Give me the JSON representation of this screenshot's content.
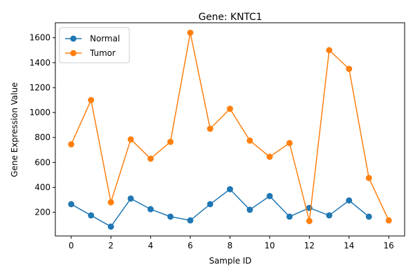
{
  "chart_data": {
    "type": "line",
    "title": "Gene: KNTC1",
    "xlabel": "Sample ID",
    "ylabel": "Gene Expression Value",
    "xlim": [
      -0.8,
      16.8
    ],
    "ylim": [
      10,
      1720
    ],
    "x_ticks": [
      0,
      2,
      4,
      6,
      8,
      10,
      12,
      14,
      16
    ],
    "y_ticks": [
      200,
      400,
      600,
      800,
      1000,
      1200,
      1400,
      1600
    ],
    "grid": false,
    "legend_position": "top-left",
    "series": [
      {
        "name": "Normal",
        "color": "#1f77b4",
        "x": [
          0,
          1,
          2,
          3,
          4,
          5,
          6,
          7,
          8,
          9,
          10,
          11,
          12,
          13,
          14,
          15
        ],
        "y": [
          265,
          175,
          85,
          310,
          225,
          165,
          135,
          265,
          385,
          220,
          330,
          165,
          235,
          175,
          295,
          165
        ]
      },
      {
        "name": "Tumor",
        "color": "#ff7f0e",
        "x": [
          0,
          1,
          2,
          3,
          4,
          5,
          6,
          7,
          8,
          9,
          10,
          11,
          12,
          13,
          14,
          15,
          16
        ],
        "y": [
          745,
          1100,
          280,
          785,
          630,
          765,
          1640,
          870,
          1030,
          775,
          645,
          755,
          130,
          1500,
          1350,
          475,
          135
        ]
      }
    ]
  }
}
